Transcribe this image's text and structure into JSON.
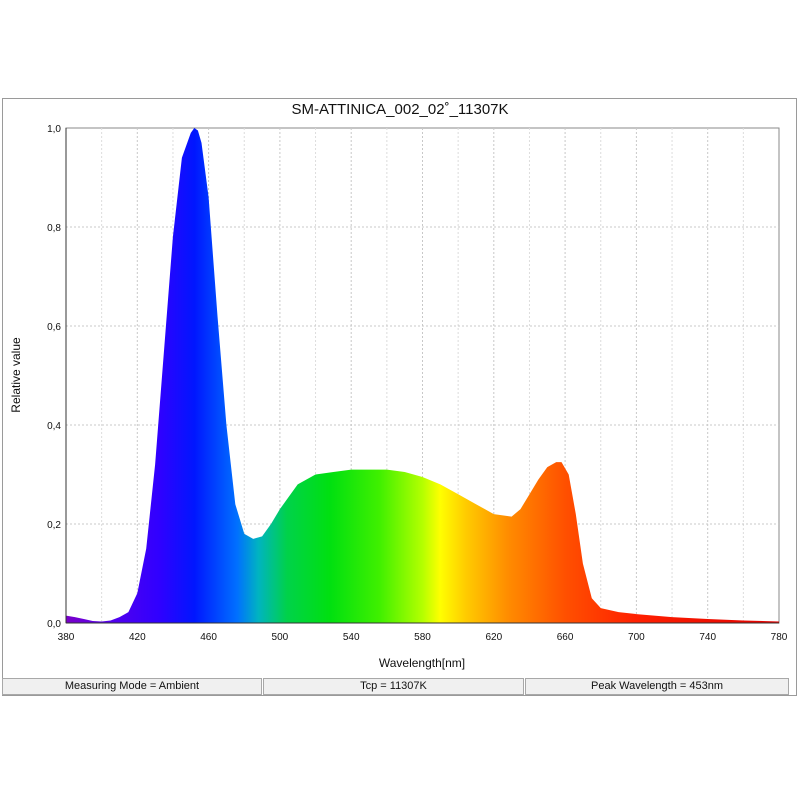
{
  "chart_data": {
    "type": "area",
    "title": "SM-ATTINICA_002_02˚_11307K",
    "xlabel": "Wavelength[nm]",
    "ylabel": "Relative value",
    "xlim": [
      380,
      780
    ],
    "ylim": [
      0,
      1.0
    ],
    "x_ticks": [
      "380",
      "420",
      "460",
      "500",
      "540",
      "580",
      "620",
      "660",
      "700",
      "740",
      "780"
    ],
    "y_ticks": [
      "0,0",
      "0,2",
      "0,4",
      "0,6",
      "0,8",
      "1,0"
    ],
    "grid": true,
    "fill": "spectral rainbow by wavelength",
    "series": [
      {
        "x": [
          380,
          385,
          390,
          395,
          400,
          405,
          410,
          415,
          420,
          425,
          430,
          435,
          440,
          445,
          450,
          452,
          454,
          456,
          460,
          465,
          470,
          475,
          480,
          485,
          490,
          495,
          500,
          510,
          520,
          530,
          540,
          550,
          560,
          570,
          580,
          590,
          600,
          610,
          620,
          630,
          635,
          640,
          645,
          650,
          655,
          658,
          662,
          666,
          670,
          675,
          680,
          690,
          700,
          720,
          740,
          760,
          780
        ],
        "y": [
          0.015,
          0.012,
          0.008,
          0.004,
          0.003,
          0.005,
          0.012,
          0.022,
          0.06,
          0.15,
          0.32,
          0.55,
          0.78,
          0.94,
          0.99,
          1.0,
          0.995,
          0.97,
          0.86,
          0.62,
          0.4,
          0.24,
          0.18,
          0.17,
          0.175,
          0.2,
          0.23,
          0.28,
          0.3,
          0.305,
          0.31,
          0.31,
          0.31,
          0.305,
          0.295,
          0.28,
          0.26,
          0.24,
          0.22,
          0.215,
          0.23,
          0.26,
          0.29,
          0.315,
          0.325,
          0.325,
          0.3,
          0.22,
          0.12,
          0.05,
          0.03,
          0.022,
          0.018,
          0.012,
          0.008,
          0.005,
          0.003
        ]
      }
    ]
  },
  "status": {
    "measuring_mode": "Measuring Mode = Ambient",
    "tcp": "Tcp = 11307K",
    "peak_wavelength": "Peak Wavelength = 453nm"
  }
}
